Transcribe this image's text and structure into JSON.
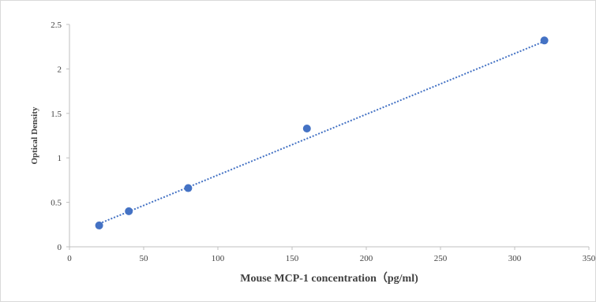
{
  "chart_data": {
    "type": "scatter",
    "title": "",
    "xlabel": "Mouse MCP-1 concentration（pg/ml)",
    "ylabel": "Optical Density",
    "xlim": [
      0,
      350
    ],
    "ylim": [
      0,
      2.5
    ],
    "x_ticks": [
      "0",
      "50",
      "100",
      "150",
      "200",
      "250",
      "300",
      "350"
    ],
    "y_ticks": [
      "0",
      "0.5",
      "1",
      "1.5",
      "2",
      "2.5"
    ],
    "grid": false,
    "legend": "none",
    "series": [
      {
        "points": [
          {
            "x": 20,
            "y": 0.24
          },
          {
            "x": 40,
            "y": 0.4
          },
          {
            "x": 80,
            "y": 0.66
          },
          {
            "x": 160,
            "y": 1.33
          },
          {
            "x": 320,
            "y": 2.32
          }
        ],
        "trendline": {
          "type": "linear",
          "from": {
            "x": 20,
            "y": 0.26
          },
          "to": {
            "x": 320,
            "y": 2.31
          }
        }
      }
    ],
    "colors": {
      "marker": "#4472c4",
      "trendline": "#4472c4",
      "axis": "#bfbfbf",
      "text": "#404040"
    }
  }
}
